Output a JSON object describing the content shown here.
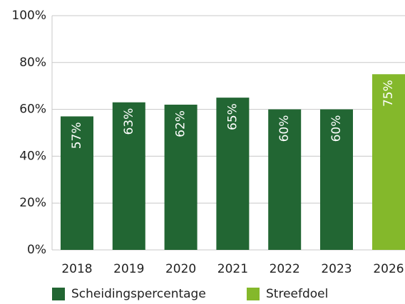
{
  "chart_data": {
    "type": "bar",
    "categories": [
      "2018",
      "2019",
      "2020",
      "2021",
      "2022",
      "2023",
      "2026"
    ],
    "series": [
      {
        "name": "Scheidingspercentage",
        "color": "#226633",
        "values": [
          57,
          63,
          62,
          65,
          60,
          60,
          null
        ],
        "value_labels": [
          "57%",
          "63%",
          "62%",
          "65%",
          "60%",
          "60%",
          null
        ]
      },
      {
        "name": "Streefdoel",
        "color": "#84b82b",
        "values": [
          null,
          null,
          null,
          null,
          null,
          null,
          75
        ],
        "value_labels": [
          null,
          null,
          null,
          null,
          null,
          null,
          "75%"
        ]
      }
    ],
    "ylim": [
      0,
      100
    ],
    "yticks": [
      {
        "value": 0,
        "label": "0%"
      },
      {
        "value": 20,
        "label": "20%"
      },
      {
        "value": 40,
        "label": "40%"
      },
      {
        "value": 60,
        "label": "60%"
      },
      {
        "value": 80,
        "label": "80%"
      },
      {
        "value": 100,
        "label": "100%"
      }
    ],
    "grid": true,
    "legend": "bottom"
  }
}
